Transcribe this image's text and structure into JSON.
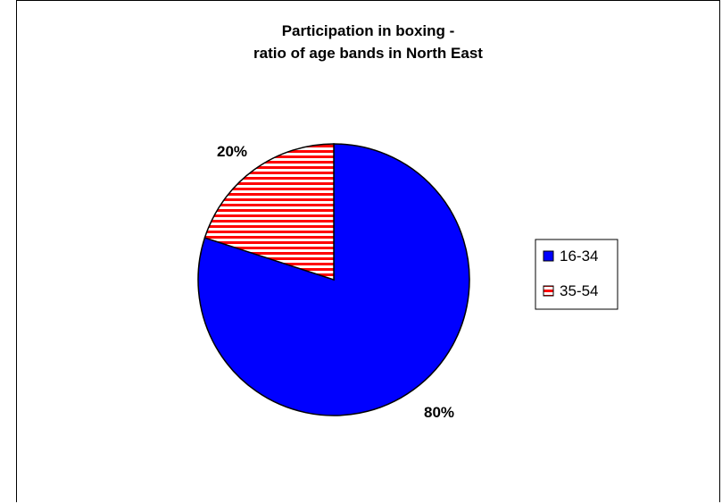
{
  "chart_data": {
    "type": "pie",
    "title_lines": [
      "Participation in boxing -",
      "ratio of age bands in North East"
    ],
    "slices": [
      {
        "label": "16-34",
        "value": 80,
        "data_label": "80%",
        "color": "#0000ff",
        "pattern": "solid"
      },
      {
        "label": "35-54",
        "value": 20,
        "data_label": "20%",
        "color": "#ff0000",
        "pattern": "horizontal-stripes"
      }
    ],
    "start_angle_deg": 0,
    "direction": "clockwise",
    "legend_position": "right",
    "legend": [
      "16-34",
      "35-54"
    ]
  }
}
